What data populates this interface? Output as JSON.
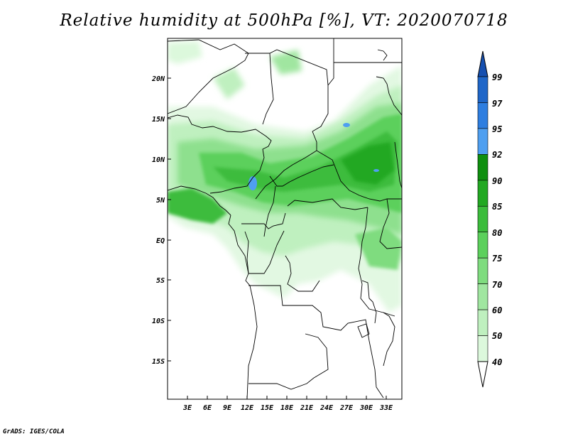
{
  "title": "Relative humidity at 500hPa [%], VT: 2020070718",
  "credit": "GrADS: IGES/COLA",
  "map": {
    "lat_labels": [
      "20N",
      "15N",
      "10N",
      "5N",
      "EQ",
      "5S",
      "10S",
      "15S"
    ],
    "lon_labels": [
      "3E",
      "6E",
      "9E",
      "12E",
      "15E",
      "18E",
      "21E",
      "24E",
      "27E",
      "30E",
      "33E"
    ]
  },
  "colorbar": {
    "labels": [
      "99",
      "97",
      "95",
      "92",
      "90",
      "85",
      "80",
      "75",
      "70",
      "60",
      "50",
      "40"
    ],
    "colors": [
      "#1f66c8",
      "#2e7ee0",
      "#4f9ff0",
      "#0f8f0f",
      "#22a822",
      "#3cbc3c",
      "#5cd05c",
      "#7fdc7f",
      "#a0e6a0",
      "#bff0bf",
      "#dcf8dc",
      "#f0fdf0"
    ],
    "top_cap_color": "#1650b0",
    "bottom_cap_color": "#ffffff"
  }
}
